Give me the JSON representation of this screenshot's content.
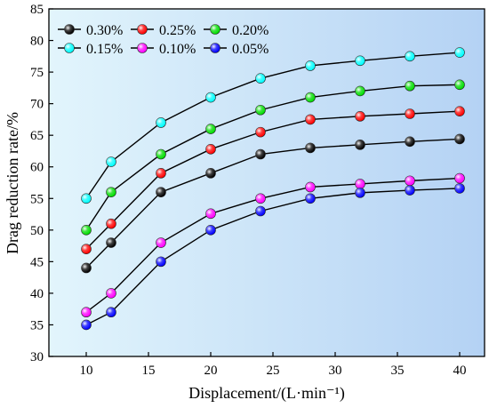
{
  "chart_data": {
    "type": "line",
    "xlabel": "Displacement/(L·min⁻¹)",
    "ylabel": "Drag reduction rate/%",
    "xlim": [
      7,
      42
    ],
    "ylim": [
      30,
      85
    ],
    "xticks": [
      10,
      15,
      20,
      25,
      30,
      35,
      40
    ],
    "yticks": [
      30,
      35,
      40,
      45,
      50,
      55,
      60,
      65,
      70,
      75,
      80,
      85
    ],
    "grid": false,
    "legend_position": "top-left",
    "x": [
      10,
      12,
      16,
      20,
      24,
      28,
      32,
      36,
      40
    ],
    "series": [
      {
        "name": "0.30%",
        "color": "#000000",
        "values": [
          44,
          48,
          56,
          59,
          62,
          63,
          63.5,
          64,
          64.4
        ]
      },
      {
        "name": "0.25%",
        "color": "#ff0000",
        "values": [
          47,
          51,
          59,
          62.8,
          65.5,
          67.5,
          68,
          68.4,
          68.8
        ]
      },
      {
        "name": "0.20%",
        "color": "#00dd00",
        "values": [
          50,
          56,
          62,
          66,
          69,
          71,
          72,
          72.8,
          73
        ]
      },
      {
        "name": "0.15%",
        "color": "#00ffff",
        "values": [
          55,
          60.8,
          67,
          71,
          74,
          76,
          76.8,
          77.5,
          78.1
        ]
      },
      {
        "name": "0.10%",
        "color": "#ff00ff",
        "values": [
          37,
          40,
          48,
          52.6,
          55,
          56.8,
          57.3,
          57.8,
          58.2
        ]
      },
      {
        "name": "0.05%",
        "color": "#0000ff",
        "values": [
          35,
          37,
          45,
          50,
          53,
          55,
          55.9,
          56.3,
          56.6
        ]
      }
    ]
  }
}
